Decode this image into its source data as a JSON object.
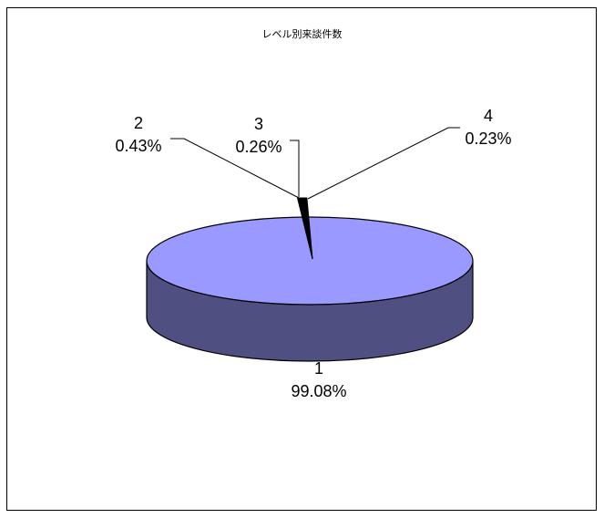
{
  "chart_data": {
    "type": "pie",
    "title": "レベル別来談件数",
    "categories": [
      "1",
      "2",
      "3",
      "4"
    ],
    "values": [
      99.08,
      0.43,
      0.26,
      0.23
    ],
    "labels": [
      {
        "category": "1",
        "percent": "99.08%"
      },
      {
        "category": "2",
        "percent": "0.43%"
      },
      {
        "category": "3",
        "percent": "0.26%"
      },
      {
        "category": "4",
        "percent": "0.23%"
      }
    ],
    "three_d": true,
    "legend": "none",
    "colors": {
      "top": "#9999ff",
      "side": "#4f4f82",
      "small_slices": "#000000",
      "outline": "#000000"
    }
  }
}
